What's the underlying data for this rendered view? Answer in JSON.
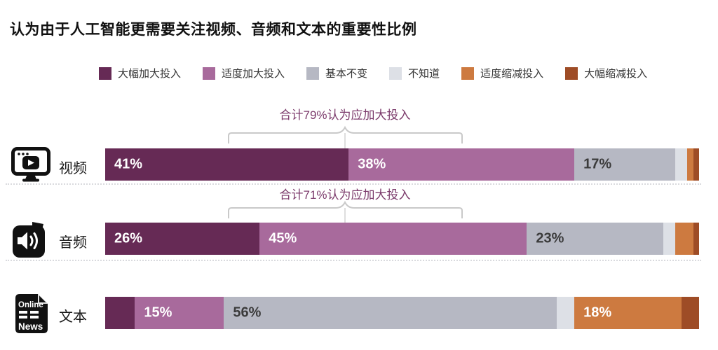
{
  "title": "认为由于人工智能更需要关注视频、音频和文本的重要性比例",
  "legend": [
    {
      "label": "大幅加大投入",
      "color": "#662a55"
    },
    {
      "label": "适度加大投入",
      "color": "#a86a9c"
    },
    {
      "label": "基本不变",
      "color": "#b6b8c3"
    },
    {
      "label": "不知道",
      "color": "#dde0e6"
    },
    {
      "label": "适度缩减投入",
      "color": "#cd7a40"
    },
    {
      "label": "大幅缩减投入",
      "color": "#9e4c26"
    }
  ],
  "chart_data": {
    "type": "bar",
    "orientation": "horizontal",
    "stacked": true,
    "xlim": [
      0,
      100
    ],
    "grid": false,
    "legend_position": "top",
    "categories": [
      "视频",
      "音频",
      "文本"
    ],
    "series": [
      {
        "name": "大幅加大投入",
        "color": "#662a55",
        "values": [
          41,
          26,
          5
        ]
      },
      {
        "name": "适度加大投入",
        "color": "#a86a9c",
        "values": [
          38,
          45,
          15
        ]
      },
      {
        "name": "基本不变",
        "color": "#b6b8c3",
        "values": [
          17,
          23,
          56
        ]
      },
      {
        "name": "不知道",
        "color": "#dde0e6",
        "values": [
          2,
          2,
          3
        ]
      },
      {
        "name": "适度缩减投入",
        "color": "#cd7a40",
        "values": [
          1,
          3,
          18
        ]
      },
      {
        "name": "大幅缩减投入",
        "color": "#9e4c26",
        "values": [
          1,
          1,
          3
        ]
      }
    ],
    "value_label_format": "{value}%",
    "min_label_value": 10,
    "label_colors": [
      "#ffffff",
      "#ffffff",
      "#3b3b3b",
      "#3b3b3b",
      "#ffffff",
      "#ffffff"
    ],
    "annotations": [
      {
        "category": "视频",
        "text": "合计79%认为应加大投入"
      },
      {
        "category": "音频",
        "text": "合计71%认为应加大投入"
      }
    ]
  },
  "icon_text": {
    "online": "Online",
    "news": "News"
  },
  "colors": {
    "annotation_text": "#7b3a6b",
    "brace": "#c9c9c9",
    "title": "#111111",
    "separator": "#d9dade"
  }
}
